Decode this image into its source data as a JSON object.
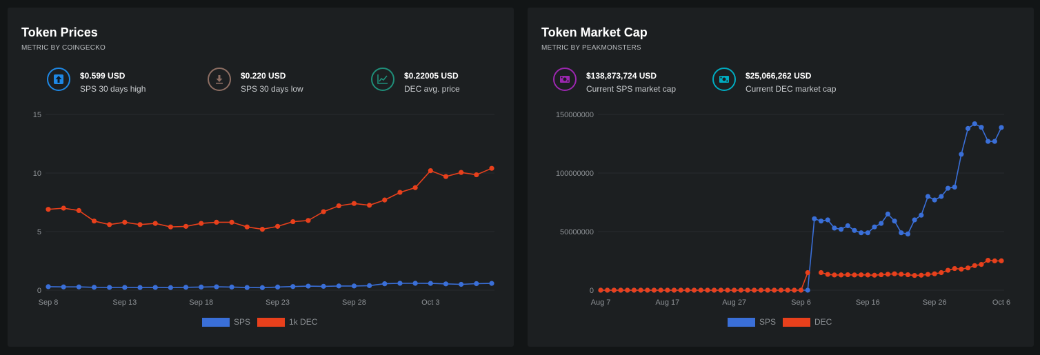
{
  "left_card": {
    "title": "Token Prices",
    "subtitle": "METRIC BY COINGECKO",
    "stats": [
      {
        "value": "$0.599 USD",
        "label": "SPS 30 days high",
        "icon": "arrow-up-icon",
        "color": "#1e88e5"
      },
      {
        "value": "$0.220 USD",
        "label": "SPS 30 days low",
        "icon": "arrow-down-icon",
        "color": "#8d6e63"
      },
      {
        "value": "$0.22005 USD",
        "label": "DEC avg. price",
        "icon": "line-chart-icon",
        "color": "#1f8f7a"
      }
    ]
  },
  "right_card": {
    "title": "Token Market Cap",
    "subtitle": "METRIC BY PEAKMONSTERS",
    "stats": [
      {
        "value": "$138,873,724 USD",
        "label": "Current SPS market cap",
        "icon": "money-icon",
        "color": "#9c27b0"
      },
      {
        "value": "$25,066,262 USD",
        "label": "Current DEC market cap",
        "icon": "money-icon",
        "color": "#00acc1"
      }
    ]
  },
  "chart_data": [
    {
      "type": "line",
      "ylim": [
        0,
        15
      ],
      "yticks": [
        "0",
        "5",
        "10",
        "15"
      ],
      "x_tick_labels": [
        "Sep 8",
        "Sep 13",
        "Sep 18",
        "Sep 23",
        "Sep 28",
        "Oct 3"
      ],
      "x_tick_index": [
        0,
        5,
        10,
        15,
        20,
        25
      ],
      "series": [
        {
          "name": "SPS",
          "color": "#3a6fd8",
          "values": [
            0.3,
            0.28,
            0.28,
            0.25,
            0.24,
            0.24,
            0.23,
            0.24,
            0.22,
            0.25,
            0.27,
            0.29,
            0.27,
            0.23,
            0.22,
            0.27,
            0.31,
            0.35,
            0.33,
            0.36,
            0.36,
            0.39,
            0.55,
            0.59,
            0.59,
            0.58,
            0.54,
            0.5,
            0.56,
            0.58
          ]
        },
        {
          "name": "1k DEC",
          "color": "#e8401c",
          "values": [
            6.9,
            7.0,
            6.8,
            5.9,
            5.6,
            5.8,
            5.6,
            5.7,
            5.4,
            5.45,
            5.7,
            5.8,
            5.8,
            5.4,
            5.2,
            5.45,
            5.85,
            5.95,
            6.7,
            7.2,
            7.4,
            7.25,
            7.7,
            8.35,
            8.75,
            10.2,
            9.7,
            10.05,
            9.85,
            10.4
          ]
        }
      ]
    },
    {
      "type": "line",
      "ylim": [
        0,
        150000000
      ],
      "yticks": [
        "0",
        "50000000",
        "100000000",
        "150000000"
      ],
      "x_tick_labels": [
        "Aug 7",
        "Aug 17",
        "Aug 27",
        "Sep 6",
        "Sep 16",
        "Sep 26",
        "Oct 6"
      ],
      "x_tick_index": [
        0,
        10,
        20,
        30,
        40,
        50,
        60
      ],
      "series": [
        {
          "name": "SPS",
          "color": "#3a6fd8",
          "values": [
            0,
            0,
            0,
            0,
            0,
            0,
            0,
            0,
            0,
            0,
            0,
            0,
            0,
            0,
            0,
            0,
            0,
            0,
            0,
            0,
            0,
            0,
            0,
            0,
            0,
            0,
            0,
            0,
            0,
            0,
            0,
            0,
            61000000,
            59000000,
            60000000,
            53000000,
            52000000,
            55000000,
            51000000,
            49000000,
            49000000,
            54000000,
            57000000,
            65000000,
            59000000,
            49000000,
            48000000,
            60000000,
            64000000,
            80000000,
            77000000,
            80000000,
            87000000,
            88000000,
            116000000,
            138000000,
            142000000,
            139000000,
            127000000,
            127000000,
            138873724
          ]
        },
        {
          "name": "DEC",
          "color": "#e8401c",
          "values": [
            0,
            0,
            0,
            0,
            0,
            0,
            0,
            0,
            0,
            0,
            0,
            0,
            0,
            0,
            0,
            0,
            0,
            0,
            0,
            0,
            0,
            0,
            0,
            0,
            0,
            0,
            0,
            0,
            0,
            0,
            0,
            15000000,
            null,
            15000000,
            13500000,
            13000000,
            13000000,
            13200000,
            13000000,
            13100000,
            13000000,
            12800000,
            13200000,
            13600000,
            14000000,
            13600000,
            13200000,
            12600000,
            12800000,
            13500000,
            14000000,
            15000000,
            17000000,
            18500000,
            18000000,
            19000000,
            21000000,
            22000000,
            25500000,
            25000000,
            25066262
          ]
        }
      ]
    }
  ]
}
